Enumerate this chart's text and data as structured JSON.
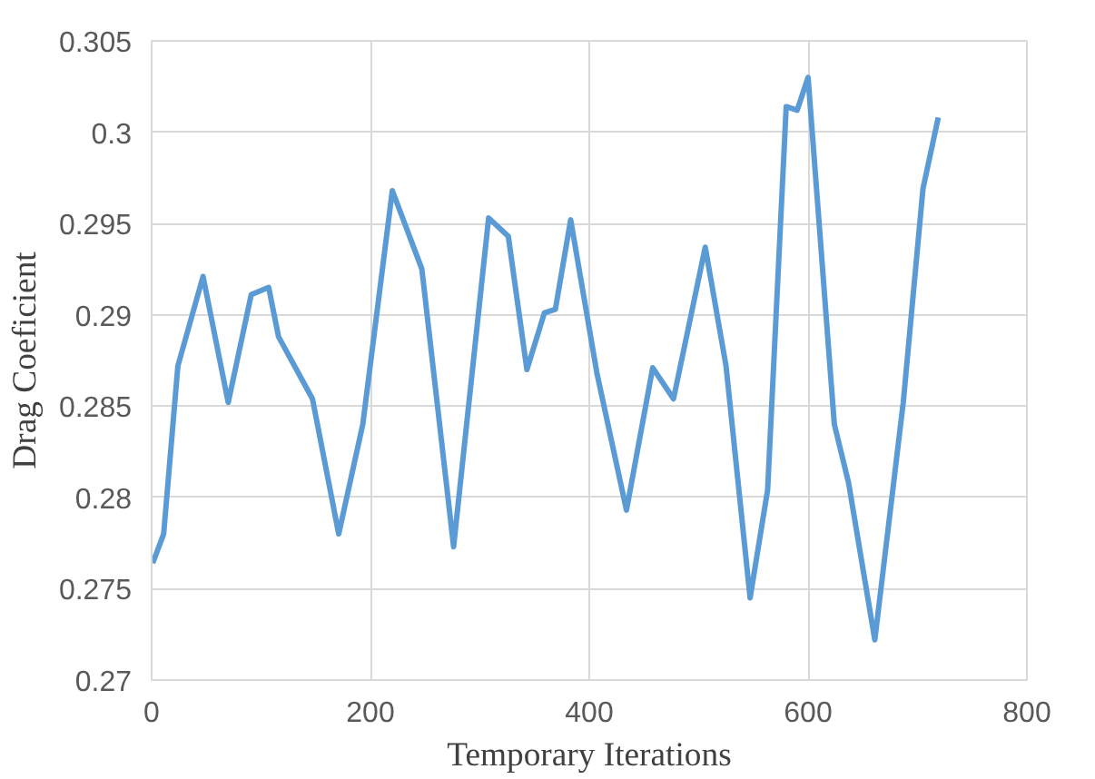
{
  "chart_data": {
    "type": "line",
    "xlabel": "Temporary Iterations",
    "ylabel": "Drag Coeficient",
    "xlim": [
      0,
      800
    ],
    "xticks": [
      0,
      200,
      400,
      600,
      800
    ],
    "ylim": [
      0.27,
      0.305
    ],
    "yticks": [
      0.27,
      0.275,
      0.28,
      0.285,
      0.29,
      0.295,
      0.3,
      0.305
    ],
    "grid": true,
    "marker": "none",
    "line_style": "solid",
    "series": [
      {
        "color": "#5b9bd5",
        "x": [
          1,
          11,
          24,
          47,
          70,
          91,
          107,
          116,
          147,
          171,
          193,
          220,
          247,
          276,
          308,
          326,
          343,
          359,
          369,
          383,
          407,
          434,
          458,
          477,
          506,
          525,
          547,
          563,
          580,
          590,
          600,
          624,
          637,
          661,
          687,
          705,
          719
        ],
        "values": [
          0.2764,
          0.278,
          0.2872,
          0.2921,
          0.2852,
          0.2911,
          0.2915,
          0.2888,
          0.2854,
          0.278,
          0.284,
          0.2968,
          0.2925,
          0.2773,
          0.2953,
          0.2943,
          0.287,
          0.2901,
          0.2903,
          0.2952,
          0.2868,
          0.2793,
          0.2871,
          0.2854,
          0.2937,
          0.2872,
          0.2745,
          0.2804,
          0.3014,
          0.3012,
          0.303,
          0.284,
          0.2808,
          0.2722,
          0.2852,
          0.2969,
          0.3008
        ]
      }
    ]
  }
}
